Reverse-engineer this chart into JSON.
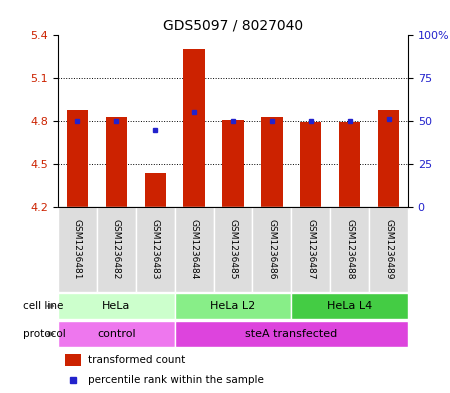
{
  "title": "GDS5097 / 8027040",
  "samples": [
    "GSM1236481",
    "GSM1236482",
    "GSM1236483",
    "GSM1236484",
    "GSM1236485",
    "GSM1236486",
    "GSM1236487",
    "GSM1236488",
    "GSM1236489"
  ],
  "red_values": [
    4.88,
    4.83,
    4.44,
    5.3,
    4.81,
    4.83,
    4.79,
    4.79,
    4.88
  ],
  "blue_values": [
    50,
    50,
    45,
    55,
    50,
    50,
    50,
    50,
    51
  ],
  "y_min": 4.2,
  "y_max": 5.4,
  "y_ticks_left": [
    4.2,
    4.5,
    4.8,
    5.1,
    5.4
  ],
  "y_ticks_right": [
    0,
    25,
    50,
    75,
    100
  ],
  "y_ticks_right_labels": [
    "0",
    "25",
    "50",
    "75",
    "100%"
  ],
  "dotted_lines": [
    4.5,
    4.8,
    5.1
  ],
  "bar_color": "#cc2200",
  "dot_color": "#2222cc",
  "cell_line_groups": [
    {
      "label": "HeLa",
      "start": 0,
      "end": 3,
      "color": "#ccffcc"
    },
    {
      "label": "HeLa L2",
      "start": 3,
      "end": 6,
      "color": "#88ee88"
    },
    {
      "label": "HeLa L4",
      "start": 6,
      "end": 9,
      "color": "#44cc44"
    }
  ],
  "protocol_groups": [
    {
      "label": "control",
      "start": 0,
      "end": 3,
      "color": "#ee77ee"
    },
    {
      "label": "steA transfected",
      "start": 3,
      "end": 9,
      "color": "#dd44dd"
    }
  ],
  "legend_red": "transformed count",
  "legend_blue": "percentile rank within the sample",
  "bar_width": 0.55,
  "background_color": "#ffffff"
}
